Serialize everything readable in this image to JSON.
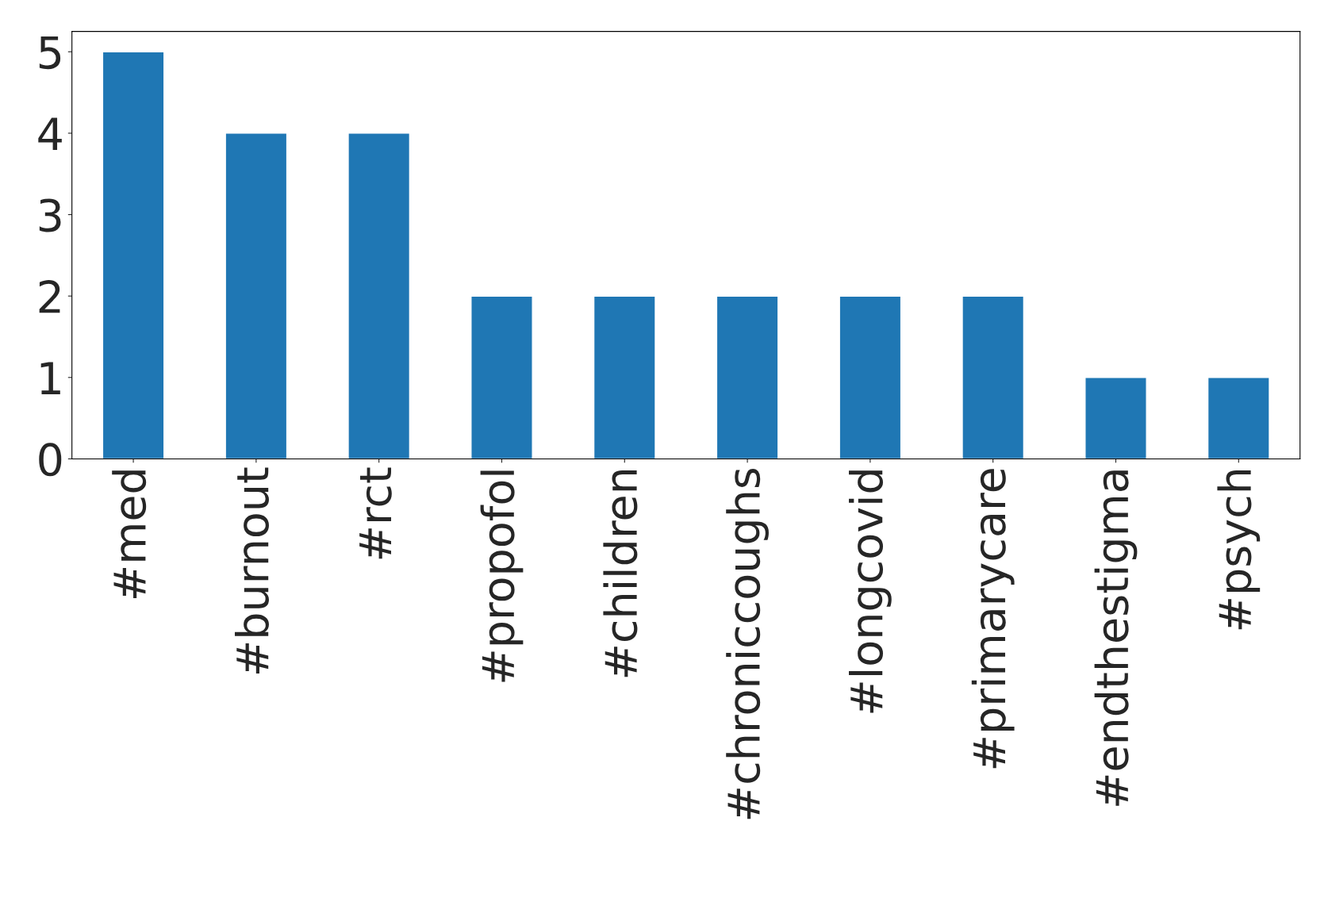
{
  "chart_data": {
    "type": "bar",
    "categories": [
      "#med",
      "#burnout",
      "#rct",
      "#propofol",
      "#children",
      "#chroniccoughs",
      "#longcovid",
      "#primarycare",
      "#endthestigma",
      "#psych"
    ],
    "values": [
      5,
      4,
      4,
      2,
      2,
      2,
      2,
      2,
      1,
      1
    ],
    "color": "#1f77b4",
    "ylim": [
      0,
      5.25
    ],
    "yticks": [
      0,
      1,
      2,
      3,
      4,
      5
    ],
    "grid": false,
    "legend": false
  }
}
